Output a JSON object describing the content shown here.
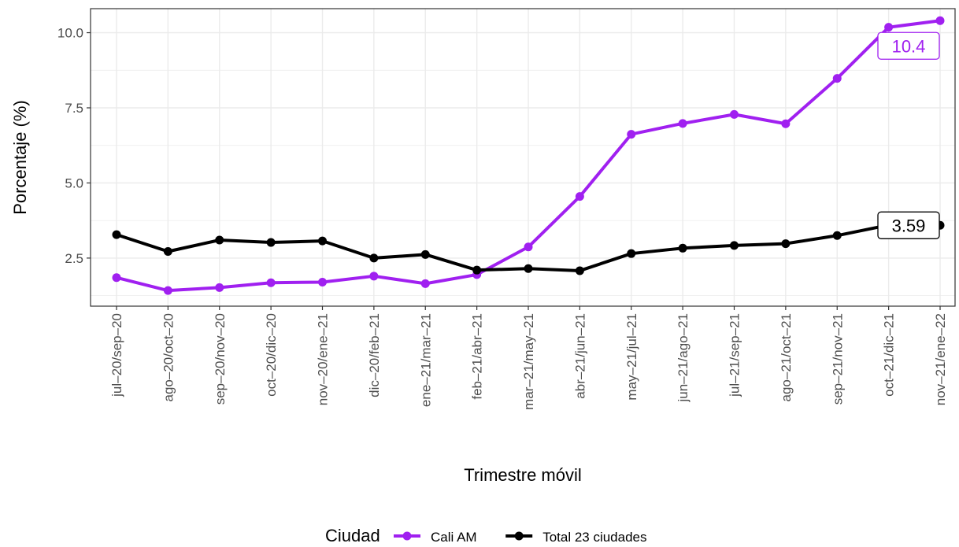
{
  "chart_data": {
    "type": "line",
    "xlabel": "Trimestre móvil",
    "ylabel": "Porcentaje (%)",
    "ylim": [
      0.9,
      10.8
    ],
    "yticks": [
      "2.5",
      "5.0",
      "7.5",
      "10.0"
    ],
    "grid": true,
    "legend_position": "bottom",
    "legend_title": "Ciudad",
    "categories": [
      "jul–20/sep–20",
      "ago–20/oct–20",
      "sep–20/nov–20",
      "oct–20/dic–20",
      "nov–20/ene–21",
      "dic–20/feb–21",
      "ene–21/mar–21",
      "feb–21/abr–21",
      "mar–21/may–21",
      "abr–21/jun–21",
      "may–21/jul–21",
      "jun–21/ago–21",
      "jul–21/sep–21",
      "ago–21/oct–21",
      "sep–21/nov–21",
      "oct–21/dic–21",
      "nov–21/ene–22"
    ],
    "series": [
      {
        "name": "Cali AM",
        "color": "#a020f0",
        "values": [
          1.85,
          1.42,
          1.52,
          1.68,
          1.7,
          1.9,
          1.65,
          1.95,
          2.87,
          4.55,
          6.62,
          6.98,
          7.28,
          6.97,
          8.48,
          10.18,
          10.4
        ],
        "end_label": "10.4"
      },
      {
        "name": "Total 23 ciudades",
        "color": "#000000",
        "values": [
          3.28,
          2.72,
          3.1,
          3.02,
          3.07,
          2.5,
          2.62,
          2.1,
          2.15,
          2.08,
          2.65,
          2.83,
          2.92,
          2.98,
          3.25,
          3.6,
          3.59
        ],
        "end_label": "3.59"
      }
    ]
  }
}
